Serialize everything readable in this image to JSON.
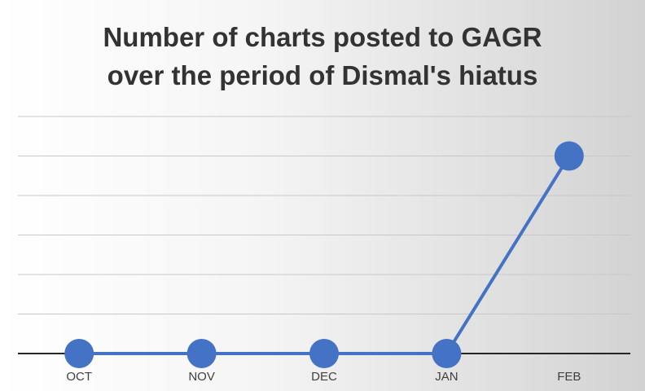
{
  "chart_data": {
    "type": "line",
    "title_lines": [
      "Number of charts posted to GAGR",
      "over the period of Dismal's hiatus"
    ],
    "categories": [
      "OCT",
      "NOV",
      "DEC",
      "JAN",
      "FEB"
    ],
    "series": [
      {
        "values": [
          0,
          0,
          0,
          0,
          5
        ]
      }
    ],
    "ylim": [
      0,
      6
    ],
    "gridlines": true,
    "y_tick_labels_visible": false,
    "colors": {
      "line": "#4472C4",
      "marker": "#4472C4",
      "grid": "#c8c8c8",
      "axis": "#262626"
    }
  }
}
